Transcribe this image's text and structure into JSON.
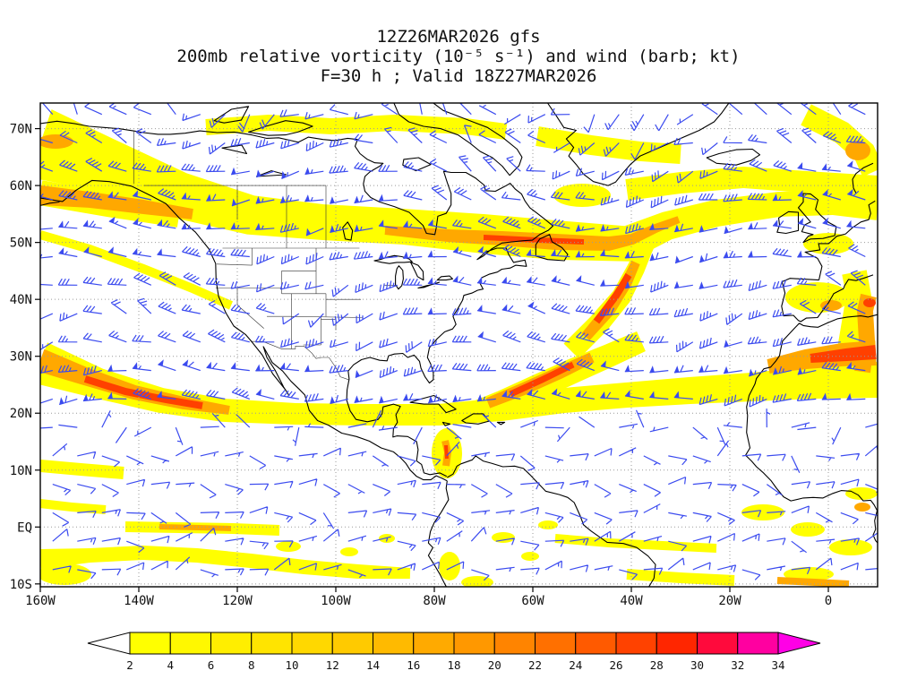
{
  "titles": {
    "line1": "12Z26MAR2026 gfs",
    "line2": "200mb relative vorticity (10⁻⁵ s⁻¹) and wind (barb; kt)",
    "line3": "F=30 h ; Valid 18Z27MAR2026"
  },
  "axes": {
    "lat": [
      {
        "label": "70N",
        "deg": 70
      },
      {
        "label": "60N",
        "deg": 60
      },
      {
        "label": "50N",
        "deg": 50
      },
      {
        "label": "40N",
        "deg": 40
      },
      {
        "label": "30N",
        "deg": 30
      },
      {
        "label": "20N",
        "deg": 20
      },
      {
        "label": "10N",
        "deg": 10
      },
      {
        "label": "EQ",
        "deg": 0
      },
      {
        "label": "10S",
        "deg": -10
      }
    ],
    "lon": [
      {
        "label": "160W",
        "deg": -160
      },
      {
        "label": "140W",
        "deg": -140
      },
      {
        "label": "120W",
        "deg": -120
      },
      {
        "label": "100W",
        "deg": -100
      },
      {
        "label": "80W",
        "deg": -80
      },
      {
        "label": "60W",
        "deg": -60
      },
      {
        "label": "40W",
        "deg": -40
      },
      {
        "label": "20W",
        "deg": -20
      },
      {
        "label": "0",
        "deg": 0
      }
    ]
  },
  "colorbar": {
    "boundary_labels": [
      "2",
      "4",
      "6",
      "8",
      "10",
      "12",
      "14",
      "16",
      "18",
      "20",
      "22",
      "24",
      "26",
      "28",
      "30",
      "32",
      "34"
    ],
    "segment_colors": [
      "#ffff00",
      "#fff800",
      "#ffee00",
      "#ffe400",
      "#ffd800",
      "#ffca00",
      "#ffba00",
      "#ffaa00",
      "#ff9800",
      "#ff8400",
      "#ff7000",
      "#ff5a00",
      "#ff4200",
      "#ff2600",
      "#ff0a3c",
      "#ff00a0"
    ],
    "under_arrow_color": "#ffffff",
    "over_arrow_color": "#ff00e6"
  },
  "style": {
    "barb_color": "#3b4bef",
    "coast_color": "#000000",
    "state_line_color": "#333333",
    "grid_color": "#9a9a9a",
    "shade_yellow": "#ffff00",
    "shade_orange": "#ffa800",
    "shade_red": "#ff4000",
    "background": "#ffffff",
    "text_color": "#111111"
  },
  "chart_data": {
    "type": "heatmap",
    "title": "200mb relative vorticity (10⁻⁵ s⁻¹) and wind (barb; kt)",
    "model": "gfs",
    "initialization": "12Z26MAR2026",
    "forecast_hour": "F=30 h",
    "valid_time": "18Z27MAR2026",
    "level": "200mb",
    "field_units": "10⁻⁵ s⁻¹",
    "wind_units": "kt (barbs)",
    "lon_axis": {
      "tick_labels": [
        "160W",
        "140W",
        "120W",
        "100W",
        "80W",
        "60W",
        "40W",
        "20W",
        "0"
      ],
      "range_deg": [
        -160,
        10
      ]
    },
    "lat_axis": {
      "tick_labels": [
        "70N",
        "60N",
        "50N",
        "40N",
        "30N",
        "20N",
        "10N",
        "EQ",
        "10S"
      ],
      "range_deg": [
        -10.5,
        74.5
      ]
    },
    "shading_levels": [
      2,
      4,
      6,
      8,
      10,
      12,
      14,
      16,
      18,
      20,
      22,
      24,
      26,
      28,
      30,
      32,
      34
    ],
    "grid": "dotted",
    "notable_features": [
      {
        "feature": "polar jet vorticity band",
        "location": "50-60N from Gulf of Alaska across Canada to Newfoundland",
        "approx_peak": 14
      },
      {
        "feature": "subtropical jet band",
        "location": "20-25N across Pacific, Gulf of Mexico and Atlantic to NW Africa",
        "approx_peak": 16
      },
      {
        "feature": "NE Pacific jet streak",
        "location": "130-150W near 21-28N",
        "approx_peak": 22
      },
      {
        "feature": "central North Atlantic streak",
        "location": "40-55W between 30N and 45N",
        "approx_peak": 26
      },
      {
        "feature": "North African maximum",
        "location": "0-15W near 27-33N over Morocco/Algeria",
        "approx_peak": 24
      },
      {
        "feature": "Colombia coastal streak",
        "location": "near 77W, 10-14N",
        "approx_peak": 20
      },
      {
        "feature": "equatorial Pacific streak",
        "location": "120-135W near EQ",
        "approx_peak": 12
      }
    ]
  }
}
